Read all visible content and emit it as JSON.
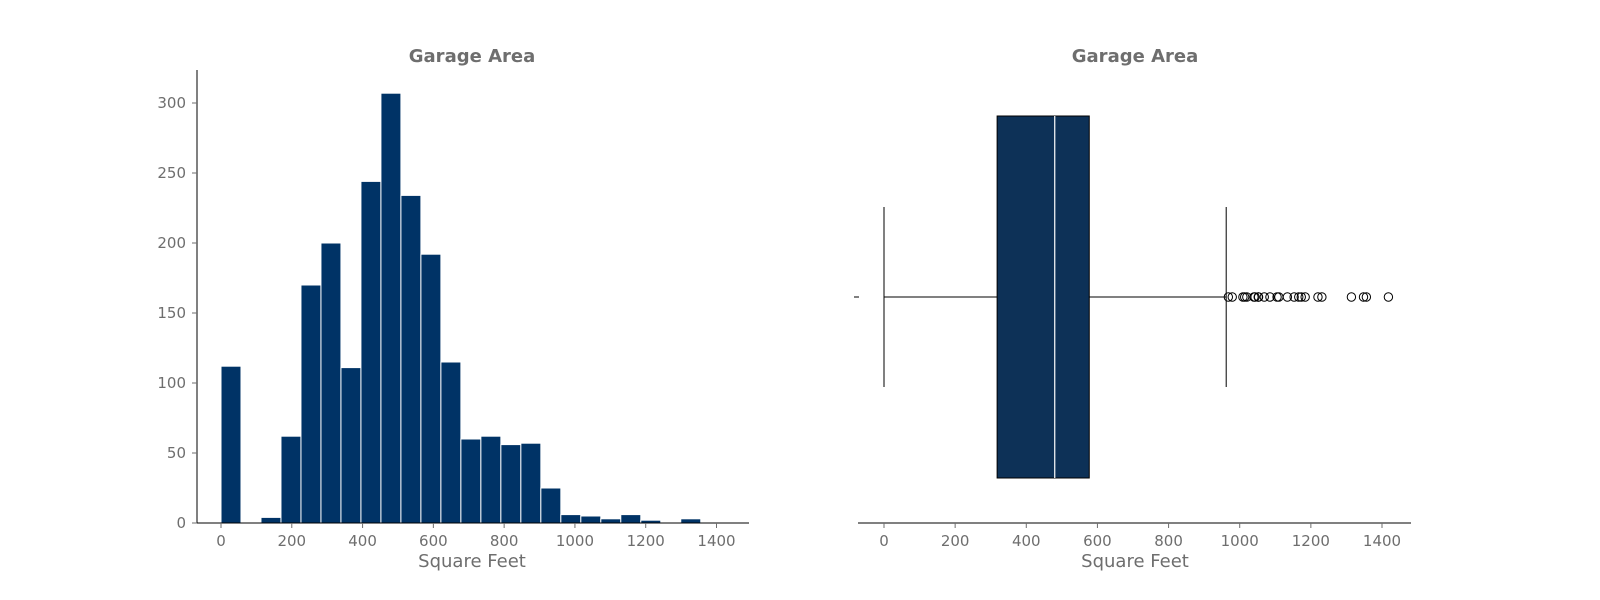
{
  "chart_data": [
    {
      "type": "bar",
      "title": "Garage Area",
      "xlabel": "Square Feet",
      "ylabel": "",
      "xlim": [
        -75,
        1490
      ],
      "ylim": [
        0,
        324
      ],
      "xticks": [
        0,
        200,
        400,
        600,
        800,
        1000,
        1200,
        1400
      ],
      "yticks": [
        0,
        50,
        100,
        150,
        200,
        250,
        300
      ],
      "bin_width": 56.48,
      "bin_start": 0,
      "values": [
        112,
        0,
        4,
        62,
        170,
        200,
        111,
        244,
        307,
        234,
        192,
        115,
        60,
        62,
        56,
        57,
        25,
        6,
        5,
        3,
        6,
        2,
        0,
        3,
        0
      ],
      "color": "#003366",
      "grid": false
    },
    {
      "type": "box",
      "title": "Garage Area",
      "xlabel": "Square Feet",
      "ylabel": "",
      "xlim": [
        -75,
        1490
      ],
      "xticks": [
        0,
        200,
        400,
        600,
        800,
        1000,
        1200,
        1400
      ],
      "whisker_low": 0,
      "q1": 318,
      "median": 480,
      "q3": 577,
      "whisker_high": 962,
      "outliers": [
        968,
        979,
        1009,
        1014,
        1020,
        1040,
        1043,
        1052,
        1053,
        1069,
        1085,
        1105,
        1110,
        1134,
        1153,
        1166,
        1173,
        1184,
        1220,
        1231,
        1314,
        1348,
        1356,
        1418
      ],
      "color": "#0d3157",
      "grid": false
    }
  ]
}
